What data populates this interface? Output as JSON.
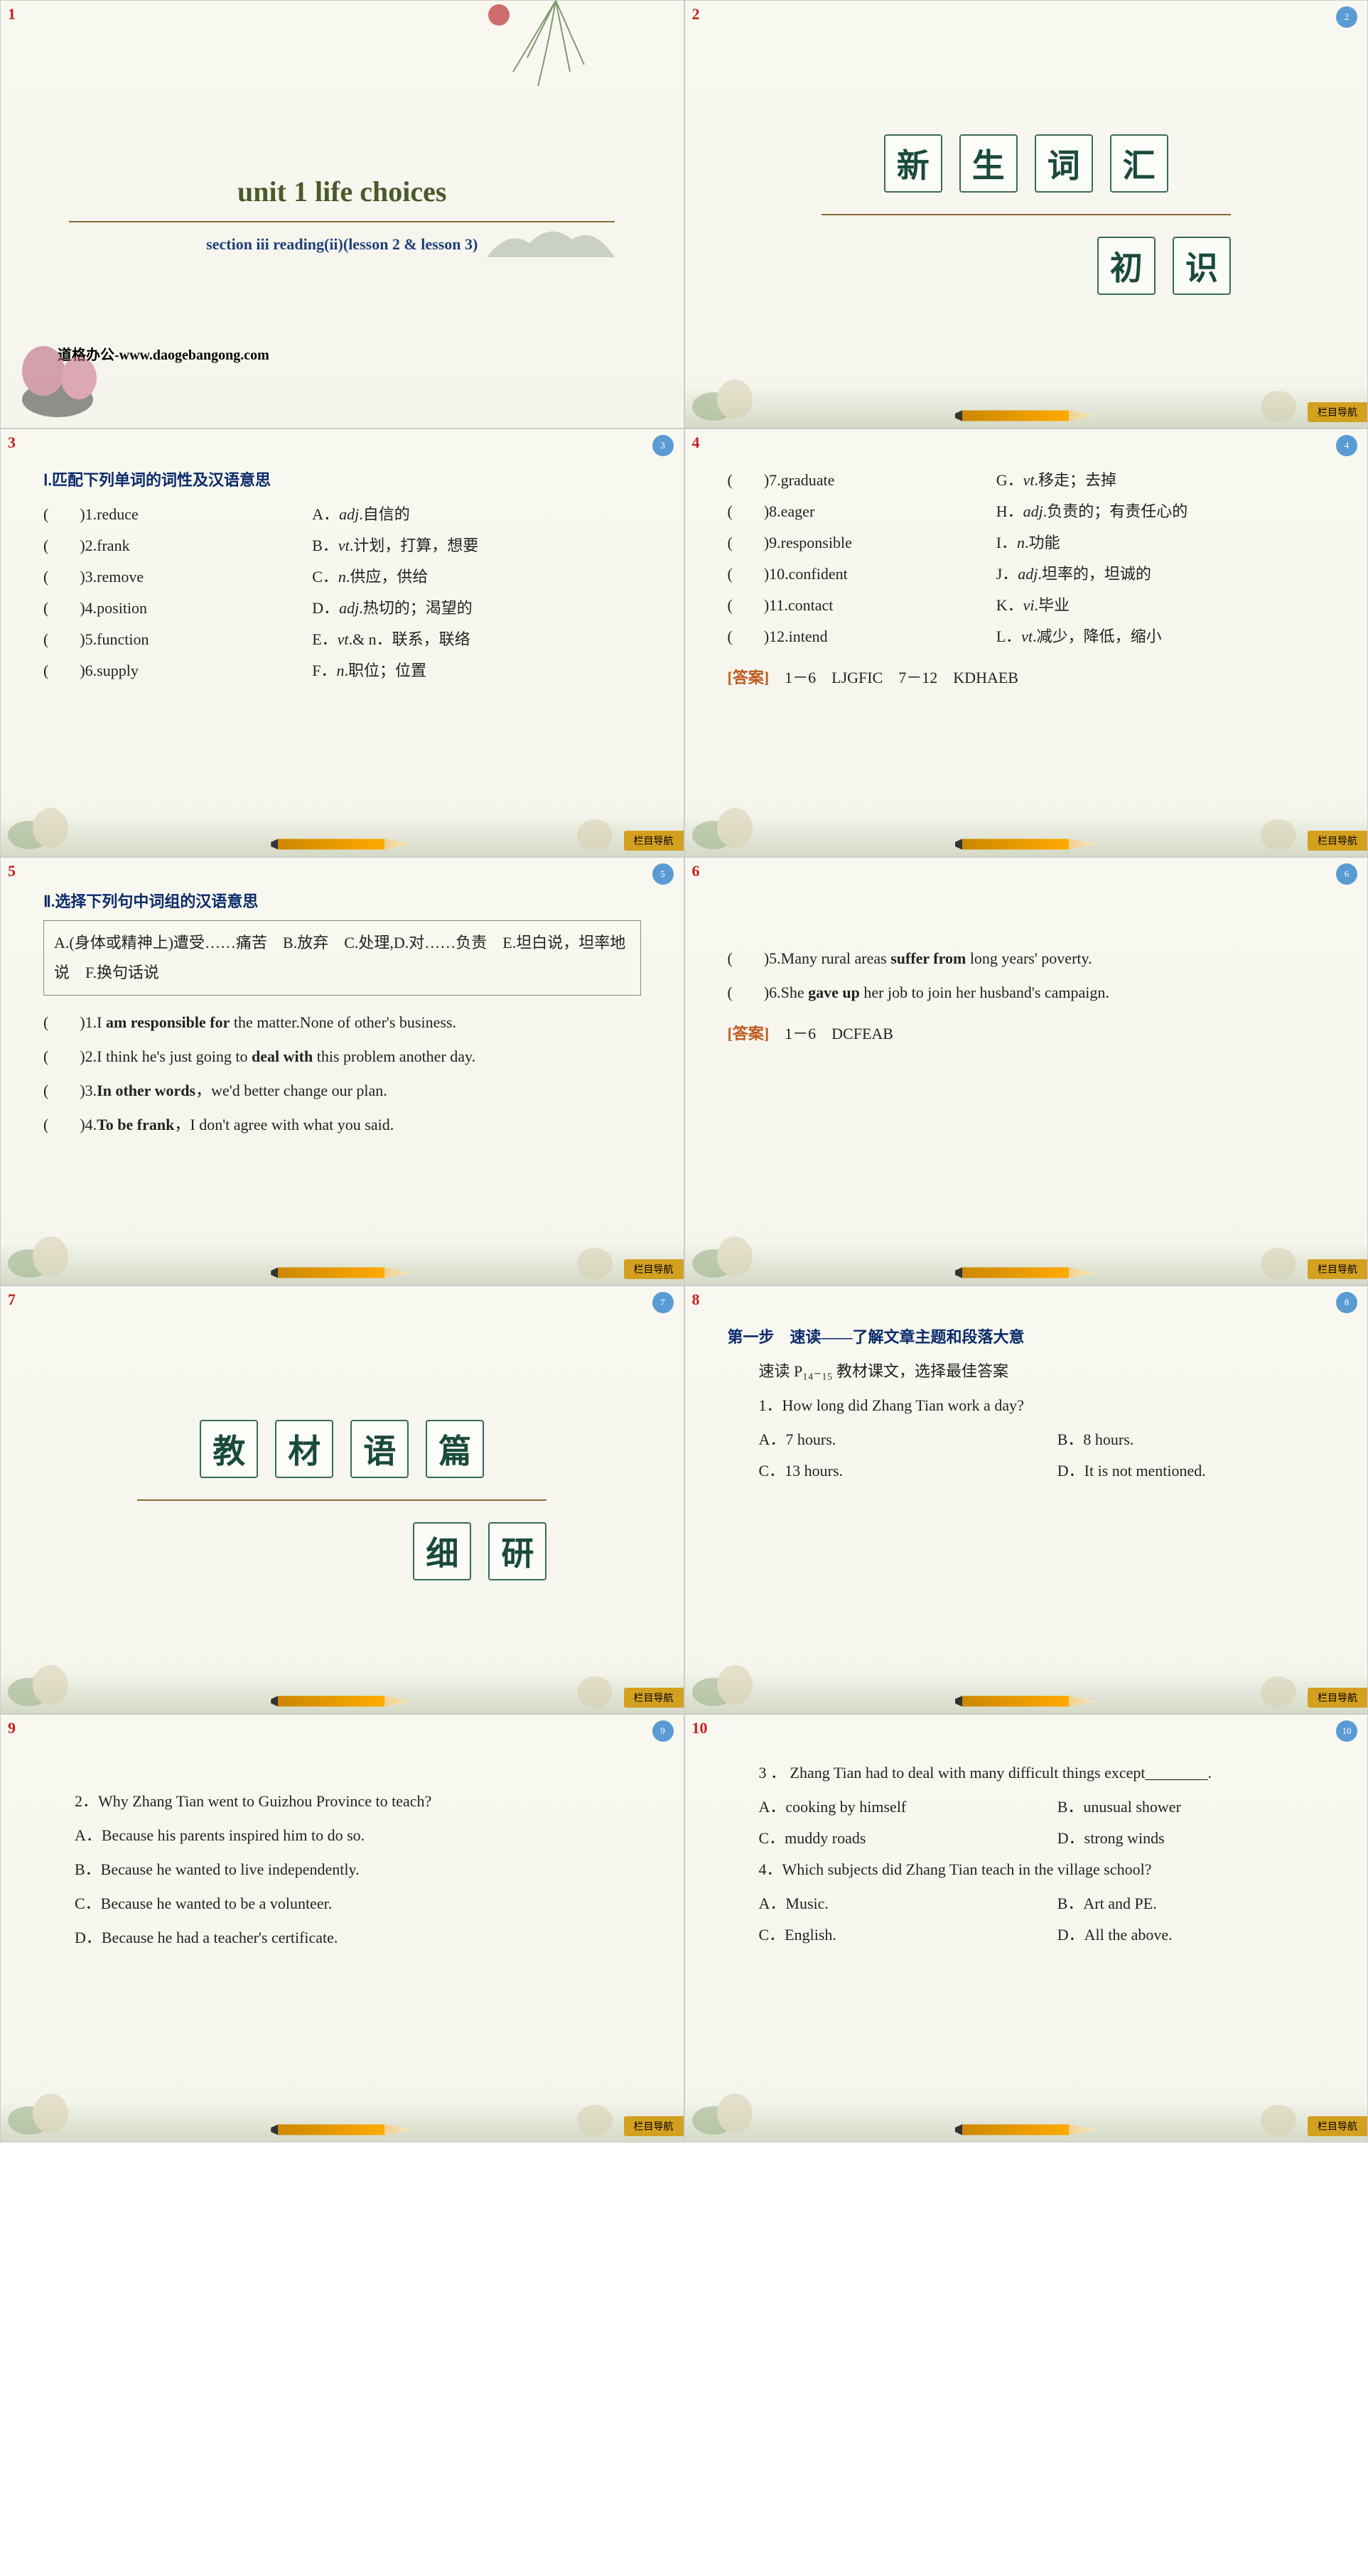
{
  "colors": {
    "slide_num": "#c62020",
    "badge_bg": "#5a9bd4",
    "nav_tab_bg": "#d4a020",
    "title_green": "#4a5a2a",
    "subtitle_blue": "#20407a",
    "char_border": "#3a6a5a",
    "char_text": "#1a4a3a",
    "head_blue": "#0a2a6a",
    "answer_orange": "#c05a20",
    "hr_brown": "#8a6a3a"
  },
  "nav_tab": "栏目导航",
  "s1": {
    "num": "1",
    "title": "unit 1  life choices",
    "subtitle": "section iii  reading(ii)(lesson 2 & lesson 3)",
    "site": "道格办公-www.daogebangong.com"
  },
  "s2": {
    "num": "2",
    "page": "2",
    "chars": [
      "新",
      "生",
      "词",
      "汇"
    ],
    "sub": [
      "初",
      "识"
    ]
  },
  "s3": {
    "num": "3",
    "page": "3",
    "head": "Ⅰ.匹配下列单词的词性及汉语意思",
    "rows": [
      {
        "n": "1",
        "w": "reduce",
        "l": "A",
        "d": "adj.自信的"
      },
      {
        "n": "2",
        "w": "frank",
        "l": "B",
        "d": "vt.计划，打算，想要"
      },
      {
        "n": "3",
        "w": "remove",
        "l": "C",
        "d": "n.供应，供给"
      },
      {
        "n": "4",
        "w": "position",
        "l": "D",
        "d": "adj.热切的；渴望的"
      },
      {
        "n": "5",
        "w": "function",
        "l": "E",
        "d": "vt.& n．联系，联络"
      },
      {
        "n": "6",
        "w": "supply",
        "l": "F",
        "d": "n.职位；位置"
      }
    ]
  },
  "s4": {
    "num": "4",
    "page": "4",
    "rows": [
      {
        "n": "7",
        "w": "graduate",
        "l": "G",
        "d": "vt.移走；去掉"
      },
      {
        "n": "8",
        "w": "eager",
        "l": "H",
        "d": "adj.负责的；有责任心的"
      },
      {
        "n": "9",
        "w": "responsible",
        "l": "I",
        "d": "n.功能"
      },
      {
        "n": "10",
        "w": "confident",
        "l": "J",
        "d": "adj.坦率的，坦诚的"
      },
      {
        "n": "11",
        "w": "contact",
        "l": "K",
        "d": "vi.毕业"
      },
      {
        "n": "12",
        "w": "intend",
        "l": "L",
        "d": "vt.减少，降低，缩小"
      }
    ],
    "answer_label": "[答案]",
    "answer": "1－6　LJGFIC　7－12　KDHAEB"
  },
  "s5": {
    "num": "5",
    "page": "5",
    "head": "Ⅱ.选择下列句中词组的汉语意思",
    "box": "A.(身体或精神上)遭受……痛苦　B.放弃　C.处理,D.对……负责　E.坦白说，坦率地说　F.换句话说",
    "items": [
      {
        "n": "1",
        "pre": "I ",
        "b": "am responsible for",
        "post": " the matter.None of other's business."
      },
      {
        "n": "2",
        "pre": "I think he's just going to ",
        "b": "deal with",
        "post": " this problem another day."
      },
      {
        "n": "3",
        "pre": "",
        "b": "In other words",
        "post": "，we'd better change our plan."
      },
      {
        "n": "4",
        "pre": "",
        "b": "To be frank",
        "post": "，I don't agree with what you said."
      }
    ]
  },
  "s6": {
    "num": "6",
    "page": "6",
    "items": [
      {
        "n": "5",
        "pre": "Many rural areas ",
        "b": "suffer from",
        "post": " long years' poverty."
      },
      {
        "n": "6",
        "pre": "She ",
        "b": "gave up",
        "post": " her job to join her husband's campaign."
      }
    ],
    "answer_label": "[答案]",
    "answer": "1－6　DCFEAB"
  },
  "s7": {
    "num": "7",
    "page": "7",
    "chars": [
      "教",
      "材",
      "语",
      "篇"
    ],
    "sub": [
      "细",
      "研"
    ]
  },
  "s8": {
    "num": "8",
    "page": "8",
    "head": "第一步　速读——了解文章主题和段落大意",
    "sub": "速读 P₁₄₋₁₅ 教材课文，选择最佳答案",
    "q": "1．How long did Zhang Tian work a day?",
    "opts": [
      "A．7 hours.",
      "B．8 hours.",
      "C．13 hours.",
      "D．It is not mentioned."
    ]
  },
  "s9": {
    "num": "9",
    "page": "9",
    "q": "2．Why Zhang Tian went to Guizhou Province to teach?",
    "opts": [
      "A．Because his parents inspired him to do so.",
      "B．Because he wanted to live independently.",
      "C．Because he wanted to be a volunteer.",
      "D．Because he had a teacher's certificate."
    ]
  },
  "s10": {
    "num": "10",
    "page": "10",
    "q3": "3 ． Zhang Tian had to deal with many difficult things except________.",
    "q3opts": [
      "A．cooking by himself",
      "B．unusual shower",
      "C．muddy roads",
      "D．strong winds"
    ],
    "q4": "4．Which subjects did Zhang Tian teach in the village school?",
    "q4opts": [
      "A．Music.",
      "B．Art and PE.",
      "C．English.",
      "D．All the above."
    ]
  }
}
